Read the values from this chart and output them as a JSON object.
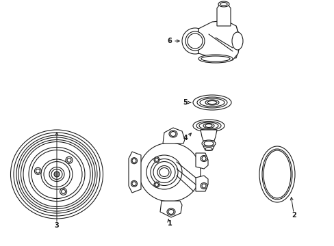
{
  "background_color": "#ffffff",
  "line_color": "#1a1a1a",
  "fig_width": 4.89,
  "fig_height": 3.6,
  "dpi": 100,
  "lw": 0.8
}
